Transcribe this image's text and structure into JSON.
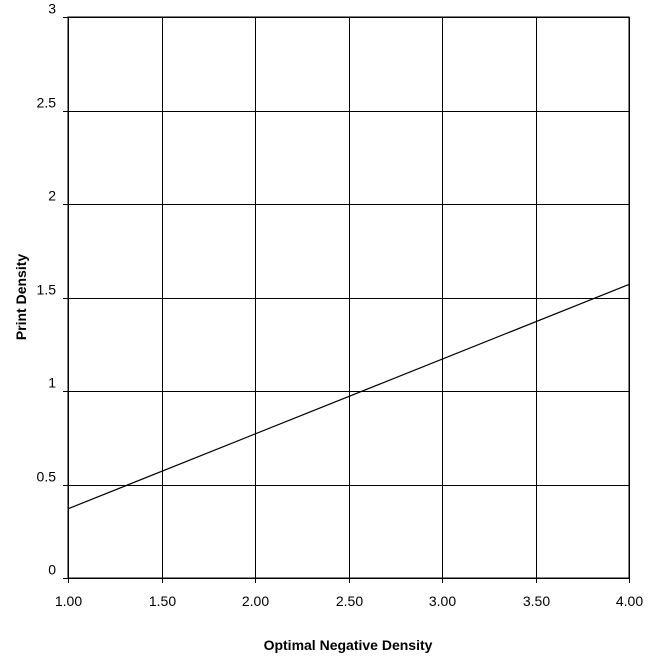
{
  "chart_data": {
    "type": "line",
    "title": "",
    "xlabel": "Optimal Negative Density",
    "ylabel": "Print Density",
    "xlim": [
      1.0,
      4.0
    ],
    "ylim": [
      0,
      3
    ],
    "x_ticks": [
      "1.00",
      "1.50",
      "2.00",
      "2.50",
      "3.00",
      "3.50",
      "4.00"
    ],
    "y_ticks": [
      "0",
      "0.5",
      "1",
      "1.5",
      "2",
      "2.5",
      "3"
    ],
    "grid": true,
    "legend": "none",
    "series": [
      {
        "x": [
          1.0,
          4.0
        ],
        "y": [
          0.37,
          1.57
        ],
        "color": "#000000"
      }
    ]
  }
}
